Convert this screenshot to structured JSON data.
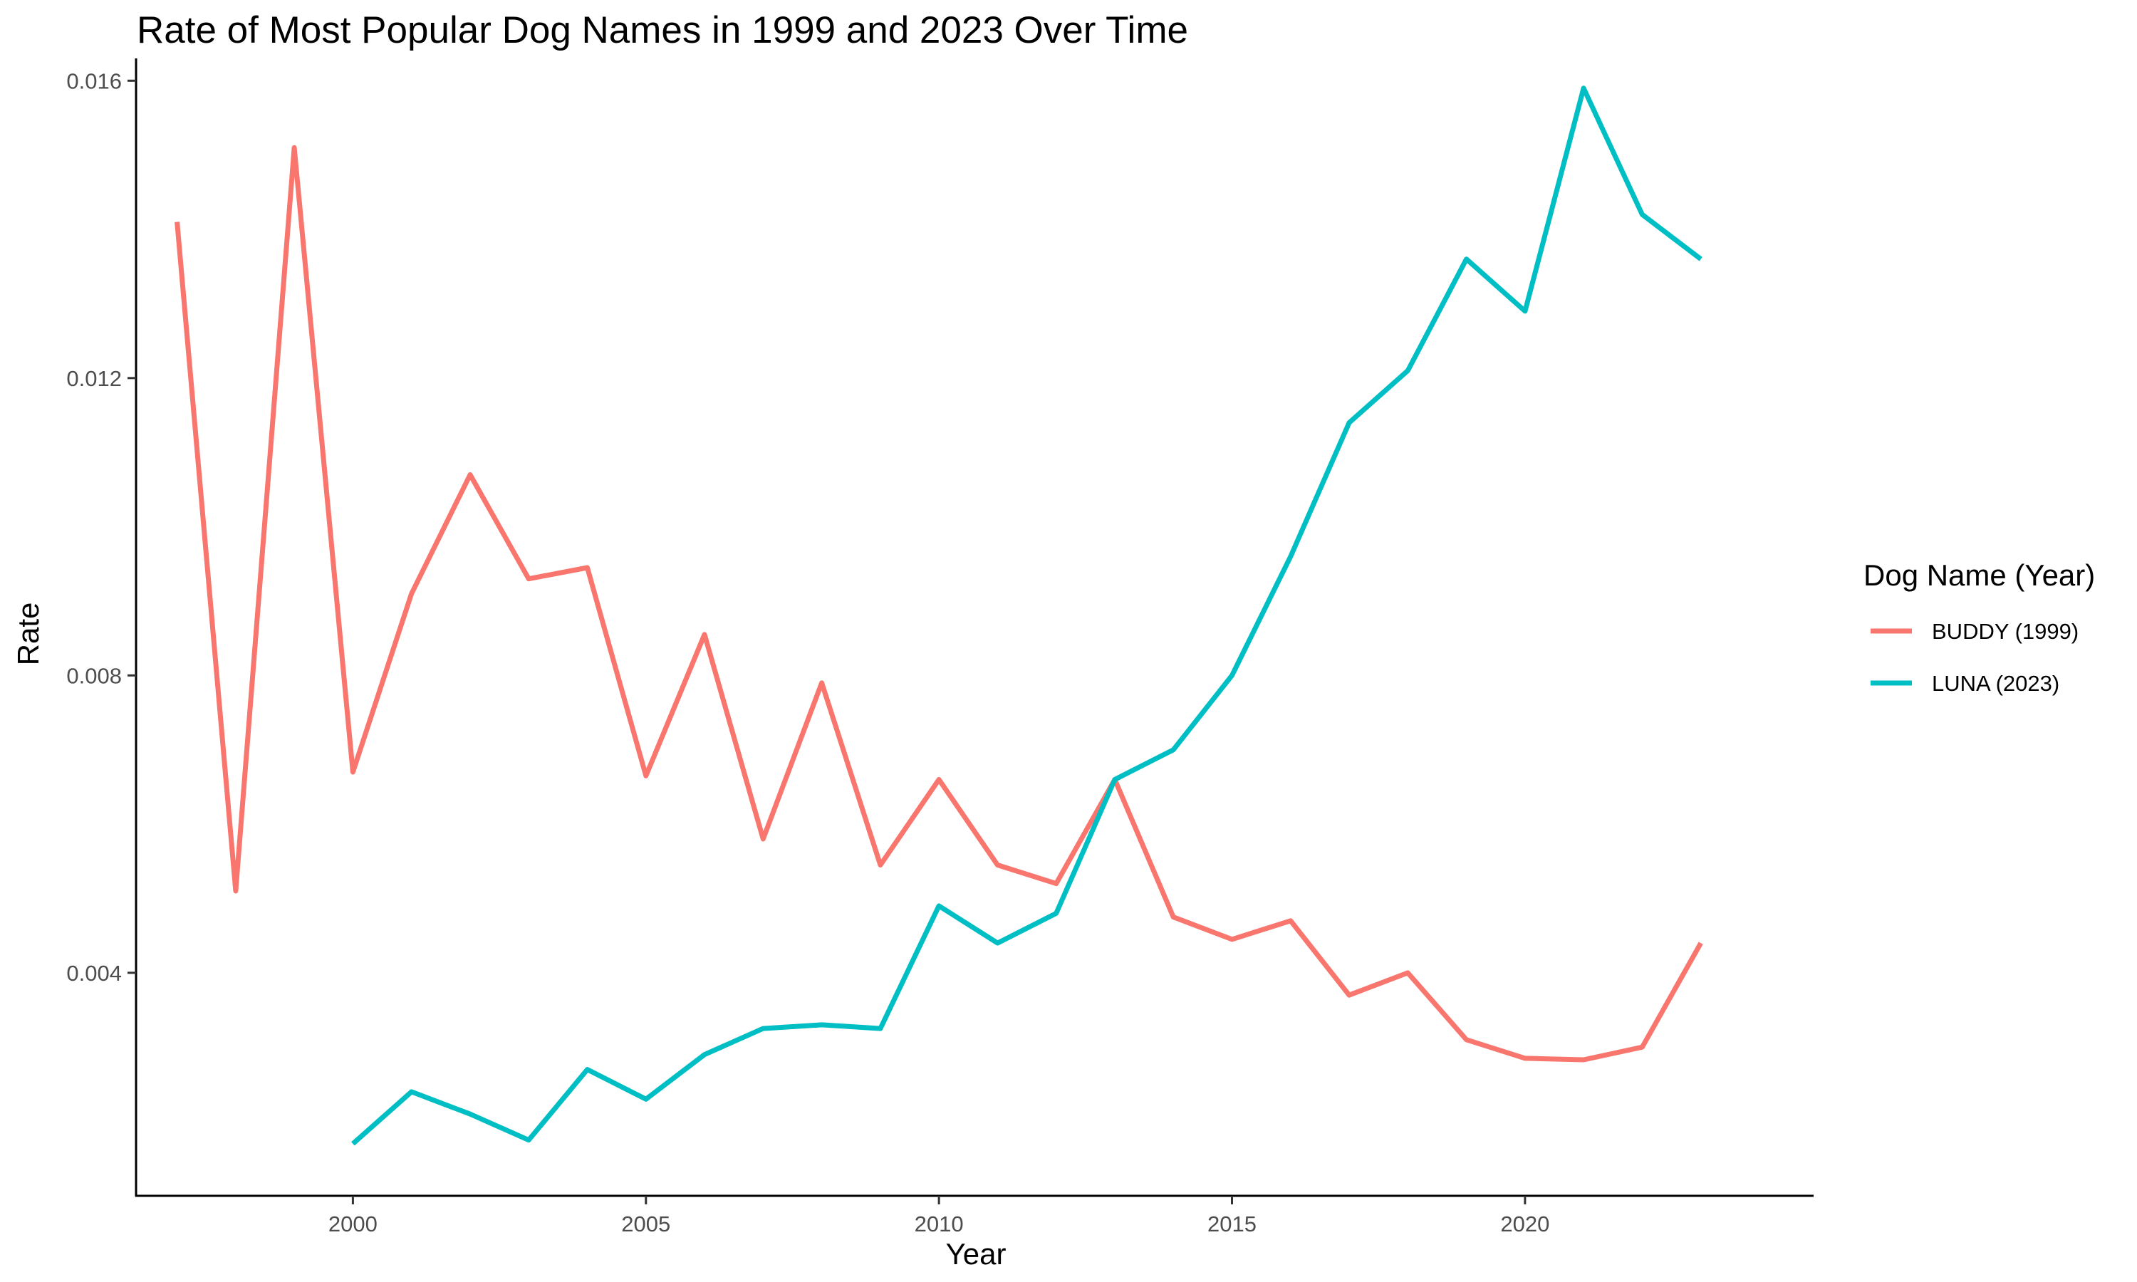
{
  "chart_data": {
    "type": "line",
    "title": "Rate of Most Popular Dog Names in 1999 and 2023 Over Time",
    "xlabel": "Year",
    "ylabel": "Rate",
    "xlim": [
      1996.3,
      2024.9
    ],
    "ylim": [
      0.001,
      0.0163
    ],
    "x_ticks": [
      2000,
      2005,
      2010,
      2015,
      2020
    ],
    "y_ticks": [
      0.004,
      0.008,
      0.012,
      0.016
    ],
    "x_tick_labels": [
      "2000",
      "2005",
      "2010",
      "2015",
      "2020"
    ],
    "y_tick_labels": [
      "0.004",
      "0.008",
      "0.012",
      "0.016"
    ],
    "grid": false,
    "legend": {
      "title": "Dog Name (Year)",
      "position": "right"
    },
    "series": [
      {
        "name": "BUDDY (1999)",
        "color": "#F8766D",
        "x": [
          1997,
          1998,
          1999,
          2000,
          2001,
          2002,
          2003,
          2004,
          2005,
          2006,
          2007,
          2008,
          2009,
          2010,
          2011,
          2012,
          2013,
          2014,
          2015,
          2016,
          2017,
          2018,
          2019,
          2020,
          2021,
          2022,
          2023
        ],
        "values": [
          0.0141,
          0.0051,
          0.0151,
          0.0067,
          0.0091,
          0.0107,
          0.0093,
          0.00945,
          0.00665,
          0.00855,
          0.0058,
          0.0079,
          0.00545,
          0.0066,
          0.00545,
          0.0052,
          0.0066,
          0.00475,
          0.00445,
          0.0047,
          0.0037,
          0.004,
          0.0031,
          0.00285,
          0.00283,
          0.003,
          0.0044
        ]
      },
      {
        "name": "LUNA (2023)",
        "color": "#00BFC4",
        "x": [
          2000,
          2001,
          2002,
          2003,
          2004,
          2005,
          2006,
          2007,
          2008,
          2009,
          2010,
          2011,
          2012,
          2013,
          2014,
          2015,
          2016,
          2017,
          2018,
          2019,
          2020,
          2021,
          2022,
          2023
        ],
        "values": [
          0.0017,
          0.0024,
          0.0021,
          0.00175,
          0.0027,
          0.0023,
          0.0029,
          0.00325,
          0.0033,
          0.00325,
          0.0049,
          0.0044,
          0.0048,
          0.0066,
          0.007,
          0.008,
          0.0096,
          0.0114,
          0.0121,
          0.0136,
          0.0129,
          0.0159,
          0.0142,
          0.0136
        ]
      }
    ]
  }
}
